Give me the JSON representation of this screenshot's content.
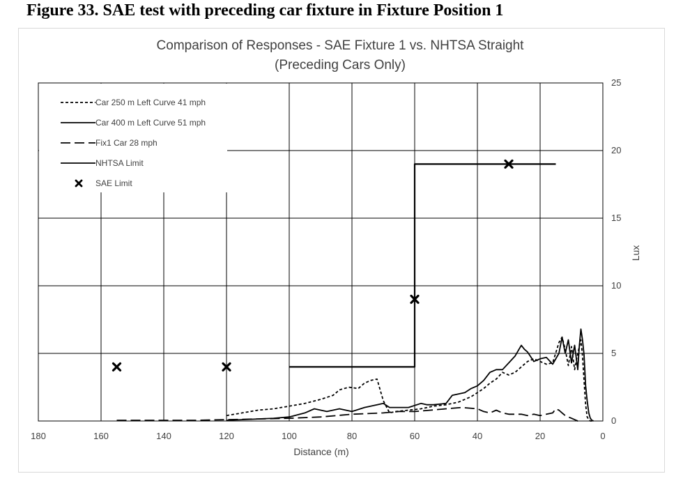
{
  "figure_caption": "Figure 33. SAE test with preceding car fixture in Fixture Position 1",
  "chart_data": {
    "type": "line",
    "title": "Comparison of Responses - SAE Fixture 1 vs. NHTSA Straight",
    "subtitle": "(Preceding Cars Only)",
    "xlabel": "Distance (m)",
    "ylabel": "Lux",
    "xlim": [
      180,
      0
    ],
    "ylim": [
      0,
      25
    ],
    "x_reversed": true,
    "y_axis_side": "right",
    "grid": true,
    "xticks": [
      "180",
      "160",
      "140",
      "120",
      "100",
      "80",
      "60",
      "40",
      "20",
      "0"
    ],
    "yticks": [
      "0",
      "5",
      "10",
      "15",
      "20",
      "25"
    ],
    "legend_position": "top-left",
    "series": [
      {
        "name": "Car 250 m Left Curve 41 mph",
        "style": "dotted",
        "color": "#000000",
        "x": [
          120,
          115,
          110,
          105,
          100,
          95,
          90,
          86,
          84,
          81,
          78,
          76,
          74,
          72,
          70,
          68,
          66,
          62,
          58,
          54,
          50,
          46,
          42,
          40,
          38,
          36,
          34,
          32,
          30,
          28,
          26,
          24,
          22,
          20,
          18,
          16,
          14,
          13,
          12,
          11,
          10,
          9,
          8,
          7,
          6.5,
          6,
          5.5,
          5,
          4.5,
          4,
          3.5,
          3
        ],
        "y": [
          0.4,
          0.6,
          0.8,
          0.9,
          1.1,
          1.3,
          1.6,
          1.9,
          2.3,
          2.5,
          2.4,
          2.8,
          3.0,
          3.1,
          1.5,
          0.6,
          0.7,
          0.8,
          0.9,
          1.1,
          1.2,
          1.4,
          1.8,
          2.1,
          2.4,
          2.8,
          3.1,
          3.6,
          3.4,
          3.6,
          4.0,
          4.4,
          4.6,
          4.4,
          4.2,
          4.3,
          5.8,
          6.2,
          5.3,
          4.1,
          5.5,
          3.8,
          5.0,
          6.0,
          4.8,
          3.0,
          1.2,
          0.3,
          0.1,
          0.0,
          0.0,
          0.0
        ]
      },
      {
        "name": "Car 400 m Left Curve 51 mph",
        "style": "solid",
        "color": "#000000",
        "x": [
          120,
          115,
          110,
          105,
          100,
          95,
          92,
          88,
          84,
          80,
          76,
          72,
          70,
          68,
          66,
          62,
          58,
          56,
          54,
          50,
          48,
          44,
          42,
          40,
          38,
          36,
          34,
          32,
          30,
          28,
          26,
          25,
          24,
          22,
          20,
          18,
          16,
          14,
          13,
          12,
          11,
          10,
          9,
          8,
          7.5,
          7,
          6.5,
          6,
          5.5,
          5,
          4.5,
          4,
          3.5,
          3
        ],
        "y": [
          0.05,
          0.1,
          0.15,
          0.2,
          0.3,
          0.6,
          0.9,
          0.7,
          0.9,
          0.7,
          1.0,
          1.2,
          1.3,
          1.0,
          1.0,
          1.0,
          1.3,
          1.2,
          1.2,
          1.3,
          1.9,
          2.1,
          2.4,
          2.6,
          3.0,
          3.6,
          3.8,
          3.8,
          4.3,
          4.8,
          5.6,
          5.3,
          5.1,
          4.4,
          4.6,
          4.7,
          4.2,
          5.0,
          6.2,
          5.0,
          6.0,
          4.3,
          5.6,
          3.8,
          5.6,
          6.8,
          6.0,
          4.9,
          2.6,
          1.5,
          0.6,
          0.2,
          0.05,
          0.0
        ]
      },
      {
        "name": "Fix1 Car 28 mph",
        "style": "dashed",
        "color": "#000000",
        "x": [
          155,
          150,
          140,
          130,
          120,
          110,
          100,
          90,
          80,
          70,
          65,
          60,
          55,
          50,
          45,
          40,
          38,
          36,
          34,
          32,
          30,
          28,
          26,
          24,
          22,
          20,
          18,
          16,
          15,
          14,
          13,
          12,
          11,
          10,
          9,
          8,
          7
        ],
        "y": [
          0.05,
          0.05,
          0.05,
          0.05,
          0.1,
          0.15,
          0.2,
          0.3,
          0.5,
          0.6,
          0.7,
          0.7,
          0.8,
          0.9,
          1.0,
          0.9,
          0.7,
          0.6,
          0.8,
          0.6,
          0.5,
          0.5,
          0.5,
          0.4,
          0.5,
          0.4,
          0.5,
          0.6,
          0.9,
          0.8,
          0.6,
          0.4,
          0.3,
          0.2,
          0.1,
          0.0,
          0.0
        ]
      },
      {
        "name": "NHTSA Limit",
        "style": "solid",
        "color": "#000000",
        "x": [
          100,
          60,
          60,
          15
        ],
        "y": [
          4,
          4,
          19,
          19
        ]
      },
      {
        "name": "SAE Limit",
        "style": "marker-x",
        "color": "#000000",
        "x": [
          155,
          120,
          60,
          30
        ],
        "y": [
          4,
          4,
          9,
          19
        ]
      }
    ]
  }
}
